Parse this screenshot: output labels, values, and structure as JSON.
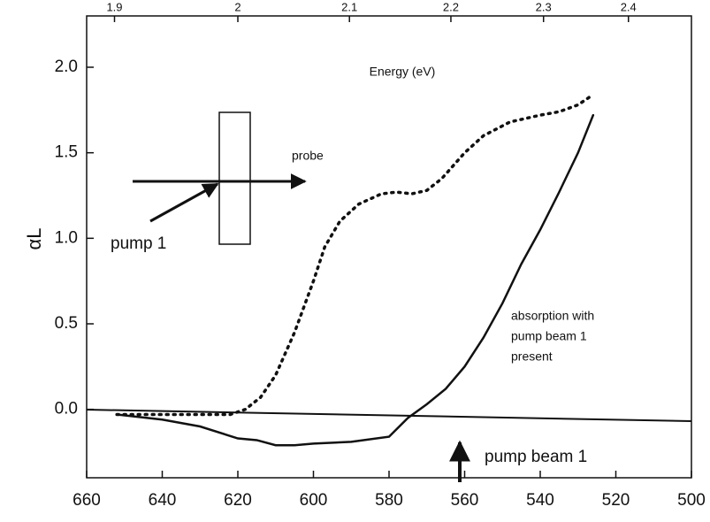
{
  "chart_data": {
    "type": "line",
    "x_label": "Energy (eV)",
    "y_label": "αL",
    "xlim": [
      660,
      500
    ],
    "xticks": [
      660,
      640,
      620,
      600,
      580,
      560,
      540,
      520,
      500
    ],
    "ylim": [
      -0.4,
      2.3
    ],
    "yticks": [
      {
        "value": 0,
        "label": "0.0"
      },
      0.5,
      {
        "value": 1,
        "label": "1.0"
      },
      1.5,
      {
        "value": 2,
        "label": "2.0"
      }
    ],
    "top_xticks": [
      1.9,
      2,
      2.1,
      2.2,
      2.3,
      2.4
    ],
    "grid": false,
    "series": [
      {
        "color": "#111111",
        "line_style": "solid",
        "x": [
          652,
          640,
          630,
          620,
          615,
          610,
          605,
          600,
          590,
          580,
          575,
          570,
          565,
          560,
          555,
          550,
          545,
          540,
          535,
          530,
          526
        ],
        "values": [
          -0.03,
          -0.06,
          -0.1,
          -0.17,
          -0.18,
          -0.21,
          -0.21,
          -0.2,
          -0.19,
          -0.16,
          -0.05,
          0.03,
          0.12,
          0.25,
          0.42,
          0.62,
          0.85,
          1.05,
          1.27,
          1.5,
          1.72
        ]
      },
      {
        "color": "#111111",
        "line_style": "dotted",
        "x": [
          652,
          640,
          630,
          622,
          618,
          614,
          610,
          605,
          600,
          597,
          593,
          588,
          582,
          578,
          574,
          570,
          566,
          560,
          555,
          548,
          540,
          535,
          530,
          526
        ],
        "values": [
          -0.03,
          -0.03,
          -0.03,
          -0.03,
          0.0,
          0.07,
          0.2,
          0.45,
          0.75,
          0.95,
          1.1,
          1.2,
          1.26,
          1.27,
          1.26,
          1.28,
          1.35,
          1.5,
          1.6,
          1.68,
          1.72,
          1.74,
          1.78,
          1.84
        ]
      }
    ],
    "annotations": [
      "probe",
      "pump 1",
      "absorption with",
      "pump beam 1",
      "present",
      "pump beam 1"
    ]
  }
}
